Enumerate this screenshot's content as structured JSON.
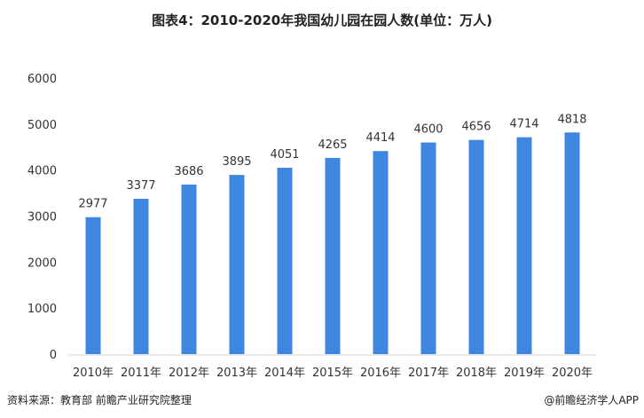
{
  "chart_data": {
    "type": "bar",
    "title": "图表4：2010-2020年我国幼儿园在园人数(单位：万人)",
    "categories": [
      "2010年",
      "2011年",
      "2012年",
      "2013年",
      "2014年",
      "2015年",
      "2016年",
      "2017年",
      "2018年",
      "2019年",
      "2020年"
    ],
    "values": [
      2977,
      3377,
      3686,
      3895,
      4051,
      4265,
      4414,
      4600,
      4656,
      4714,
      4818
    ],
    "ylim": [
      0,
      6000
    ],
    "yticks": [
      0,
      1000,
      2000,
      3000,
      4000,
      5000,
      6000
    ],
    "xlabel": "",
    "ylabel": "",
    "grid": false,
    "bar_color": "#3f86e0",
    "data_labels": true
  },
  "footer": {
    "source": "资料来源：教育部 前瞻产业研究院整理",
    "credit": "@前瞻经济学人APP"
  }
}
